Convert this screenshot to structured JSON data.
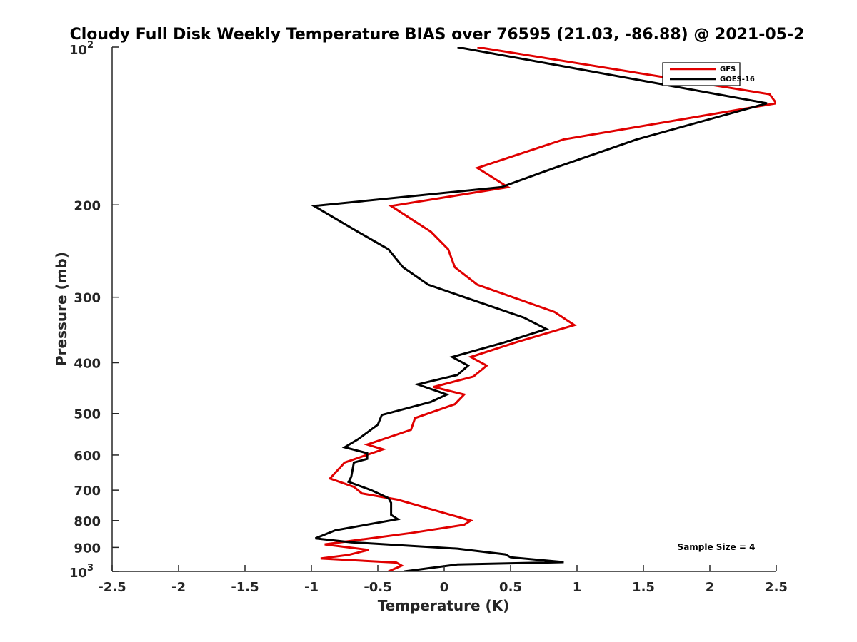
{
  "chart_data": {
    "type": "line",
    "title": "Cloudy Full Disk Weekly Temperature BIAS over 76595 (21.03, -86.88) @ 2021-05-2",
    "xlabel": "Temperature (K)",
    "ylabel": "Pressure (mb)",
    "xlim": [
      -2.5,
      2.5
    ],
    "ylim": [
      100,
      1000
    ],
    "yscale": "log",
    "ydirection": "reversed",
    "x_ticks": [
      -2.5,
      -2,
      -1.5,
      -1,
      -0.5,
      0,
      0.5,
      1,
      1.5,
      2,
      2.5
    ],
    "x_tick_labels": [
      "-2.5",
      "-2",
      "-1.5",
      "-1",
      "-0.5",
      "0",
      "0.5",
      "1",
      "1.5",
      "2",
      "2.5"
    ],
    "y_ticks": [
      200,
      300,
      400,
      500,
      600,
      700,
      800,
      900
    ],
    "y_tick_labels": [
      "200",
      "300",
      "400",
      "500",
      "600",
      "700",
      "800",
      "900"
    ],
    "y_top_label": {
      "base": "10",
      "exp": "2"
    },
    "y_bottom_label": {
      "base": "10",
      "exp": "3"
    },
    "legend_position": "top-right",
    "annotation": "Sample Size = 4",
    "series": [
      {
        "name": "GFS",
        "color": "#e00000",
        "points": [
          {
            "x": 0.25,
            "p": 100
          },
          {
            "x": 2.45,
            "p": 123
          },
          {
            "x": 2.5,
            "p": 128
          },
          {
            "x": 0.9,
            "p": 150
          },
          {
            "x": 0.25,
            "p": 170
          },
          {
            "x": 0.48,
            "p": 185
          },
          {
            "x": -0.4,
            "p": 201
          },
          {
            "x": -0.1,
            "p": 225
          },
          {
            "x": 0.03,
            "p": 243
          },
          {
            "x": 0.08,
            "p": 263
          },
          {
            "x": 0.25,
            "p": 284
          },
          {
            "x": 0.83,
            "p": 320
          },
          {
            "x": 0.98,
            "p": 339
          },
          {
            "x": 0.55,
            "p": 365
          },
          {
            "x": 0.2,
            "p": 390
          },
          {
            "x": 0.32,
            "p": 405
          },
          {
            "x": 0.22,
            "p": 425
          },
          {
            "x": -0.08,
            "p": 445
          },
          {
            "x": 0.15,
            "p": 460
          },
          {
            "x": 0.08,
            "p": 480
          },
          {
            "x": -0.22,
            "p": 510
          },
          {
            "x": -0.25,
            "p": 537
          },
          {
            "x": -0.58,
            "p": 573
          },
          {
            "x": -0.46,
            "p": 585
          },
          {
            "x": -0.75,
            "p": 620
          },
          {
            "x": -0.86,
            "p": 665
          },
          {
            "x": -0.68,
            "p": 690
          },
          {
            "x": -0.62,
            "p": 710
          },
          {
            "x": -0.35,
            "p": 730
          },
          {
            "x": 0.2,
            "p": 800
          },
          {
            "x": 0.15,
            "p": 815
          },
          {
            "x": -0.25,
            "p": 845
          },
          {
            "x": -0.9,
            "p": 888
          },
          {
            "x": -0.57,
            "p": 910
          },
          {
            "x": -0.72,
            "p": 930
          },
          {
            "x": -0.93,
            "p": 945
          },
          {
            "x": -0.36,
            "p": 962
          },
          {
            "x": -0.32,
            "p": 975
          },
          {
            "x": -0.42,
            "p": 1000
          }
        ]
      },
      {
        "name": "GOES-16",
        "color": "#000000",
        "points": [
          {
            "x": 0.1,
            "p": 100
          },
          {
            "x": 2.43,
            "p": 128
          },
          {
            "x": 1.45,
            "p": 150
          },
          {
            "x": 0.83,
            "p": 170
          },
          {
            "x": 0.43,
            "p": 185
          },
          {
            "x": -0.98,
            "p": 201
          },
          {
            "x": -0.65,
            "p": 225
          },
          {
            "x": -0.42,
            "p": 243
          },
          {
            "x": -0.31,
            "p": 263
          },
          {
            "x": -0.12,
            "p": 284
          },
          {
            "x": 0.3,
            "p": 309
          },
          {
            "x": 0.6,
            "p": 328
          },
          {
            "x": 0.77,
            "p": 345
          },
          {
            "x": 0.45,
            "p": 366
          },
          {
            "x": 0.06,
            "p": 390
          },
          {
            "x": 0.18,
            "p": 405
          },
          {
            "x": 0.1,
            "p": 422
          },
          {
            "x": -0.2,
            "p": 440
          },
          {
            "x": 0.02,
            "p": 460
          },
          {
            "x": -0.1,
            "p": 475
          },
          {
            "x": -0.47,
            "p": 503
          },
          {
            "x": -0.5,
            "p": 525
          },
          {
            "x": -0.65,
            "p": 560
          },
          {
            "x": -0.75,
            "p": 580
          },
          {
            "x": -0.58,
            "p": 595
          },
          {
            "x": -0.58,
            "p": 610
          },
          {
            "x": -0.68,
            "p": 620
          },
          {
            "x": -0.7,
            "p": 660
          },
          {
            "x": -0.72,
            "p": 675
          },
          {
            "x": -0.55,
            "p": 700
          },
          {
            "x": -0.42,
            "p": 725
          },
          {
            "x": -0.4,
            "p": 740
          },
          {
            "x": -0.4,
            "p": 780
          },
          {
            "x": -0.35,
            "p": 795
          },
          {
            "x": -0.82,
            "p": 835
          },
          {
            "x": -0.97,
            "p": 865
          },
          {
            "x": -0.7,
            "p": 880
          },
          {
            "x": 0.1,
            "p": 905
          },
          {
            "x": 0.46,
            "p": 928
          },
          {
            "x": 0.5,
            "p": 940
          },
          {
            "x": 0.9,
            "p": 960
          },
          {
            "x": 0.1,
            "p": 970
          },
          {
            "x": -0.3,
            "p": 1000
          }
        ]
      }
    ]
  }
}
